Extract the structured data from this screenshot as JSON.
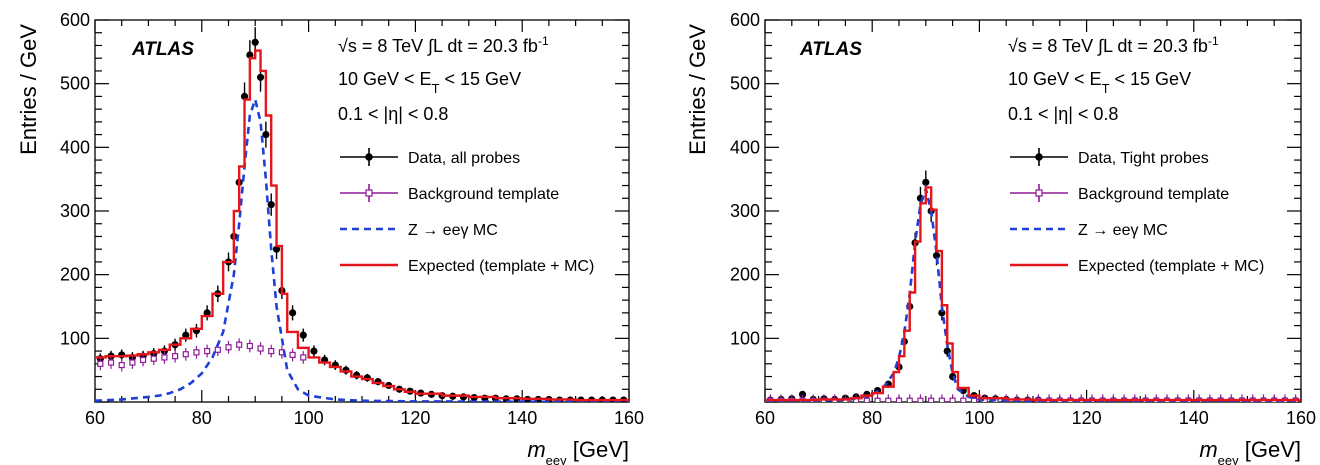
{
  "chart_data": [
    {
      "type": "line",
      "panel": "left",
      "experiment": "ATLAS",
      "info_lines": [
        "√s = 8 TeV  ∫L dt = 20.3 fb⁻¹",
        "10 GeV < E_T < 15 GeV",
        "0.1 < |η| < 0.8"
      ],
      "xlabel": "m_eeγ [GeV]",
      "ylabel": "Entries / GeV",
      "xlim": [
        60,
        160
      ],
      "ylim": [
        0,
        600
      ],
      "xticks": [
        60,
        80,
        100,
        120,
        140,
        160
      ],
      "yticks": [
        100,
        200,
        300,
        400,
        500,
        600
      ],
      "legend_position": "right",
      "series": [
        {
          "name": "Data, all probes",
          "kind": "points",
          "color": "#000000",
          "x": [
            61,
            63,
            65,
            67,
            69,
            71,
            73,
            75,
            77,
            79,
            81,
            83,
            85,
            86,
            87,
            88,
            89,
            90,
            91,
            92,
            93,
            94,
            95,
            97,
            99,
            101,
            103,
            105,
            107,
            109,
            111,
            113,
            115,
            117,
            119,
            121,
            123,
            125,
            127,
            129,
            131,
            133,
            135,
            137,
            139,
            141,
            143,
            145,
            147,
            149,
            151,
            153,
            155,
            157,
            159
          ],
          "y": [
            68,
            72,
            74,
            70,
            72,
            76,
            80,
            90,
            105,
            112,
            140,
            170,
            220,
            260,
            345,
            480,
            545,
            565,
            510,
            420,
            310,
            240,
            175,
            140,
            105,
            80,
            66,
            58,
            50,
            42,
            38,
            32,
            26,
            20,
            17,
            14,
            12,
            10,
            9,
            8,
            7,
            6,
            6,
            5,
            5,
            4,
            4,
            4,
            3,
            3,
            3,
            3,
            3,
            3,
            3
          ]
        },
        {
          "name": "Background template",
          "kind": "points-open",
          "color": "#8e1a9a",
          "x": [
            61,
            63,
            65,
            67,
            69,
            71,
            73,
            75,
            77,
            79,
            81,
            83,
            85,
            87,
            89,
            91,
            93,
            95,
            97,
            99
          ],
          "y": [
            60,
            62,
            58,
            62,
            66,
            68,
            70,
            72,
            75,
            78,
            80,
            82,
            86,
            90,
            88,
            84,
            80,
            78,
            74,
            70
          ]
        },
        {
          "name": "Z → eeγ MC",
          "kind": "dashed",
          "color": "#1f3fd6",
          "x": [
            60,
            65,
            70,
            72,
            74,
            76,
            78,
            80,
            82,
            84,
            86,
            87,
            88,
            89,
            90,
            91,
            92,
            93,
            94,
            96,
            98,
            100,
            105,
            110,
            120,
            160
          ],
          "y": [
            2,
            4,
            8,
            10,
            14,
            20,
            30,
            45,
            70,
            110,
            200,
            280,
            370,
            450,
            475,
            440,
            350,
            240,
            150,
            50,
            20,
            10,
            4,
            2,
            1,
            0
          ]
        },
        {
          "name": "Expected (template + MC)",
          "kind": "step",
          "color": "#e4161b",
          "x": [
            60,
            62,
            64,
            66,
            68,
            70,
            72,
            74,
            76,
            78,
            80,
            82,
            84,
            86,
            87,
            88,
            89,
            90,
            91,
            92,
            93,
            94,
            95,
            96,
            98,
            100,
            102,
            104,
            106,
            108,
            110,
            112,
            114,
            116,
            118,
            120,
            125,
            130,
            135,
            140,
            145,
            150,
            155,
            160
          ],
          "y": [
            70,
            72,
            72,
            73,
            75,
            78,
            82,
            90,
            100,
            115,
            135,
            170,
            220,
            300,
            370,
            475,
            540,
            552,
            520,
            450,
            340,
            245,
            170,
            110,
            85,
            70,
            62,
            55,
            48,
            40,
            36,
            30,
            25,
            20,
            16,
            13,
            10,
            8,
            6,
            5,
            4,
            3,
            3,
            3
          ]
        }
      ]
    },
    {
      "type": "line",
      "panel": "right",
      "experiment": "ATLAS",
      "info_lines": [
        "√s = 8 TeV  ∫L dt = 20.3 fb⁻¹",
        "10 GeV < E_T < 15 GeV",
        "0.1 < |η| < 0.8"
      ],
      "xlabel": "m_eeγ [GeV]",
      "ylabel": "Entries / GeV",
      "xlim": [
        60,
        160
      ],
      "ylim": [
        0,
        600
      ],
      "xticks": [
        60,
        80,
        100,
        120,
        140,
        160
      ],
      "yticks": [
        100,
        200,
        300,
        400,
        500,
        600
      ],
      "legend_position": "right",
      "series": [
        {
          "name": "Data, Tight probes",
          "kind": "points",
          "color": "#000000",
          "x": [
            61,
            63,
            65,
            67,
            69,
            71,
            73,
            75,
            77,
            79,
            81,
            83,
            85,
            86,
            87,
            88,
            89,
            90,
            91,
            92,
            93,
            94,
            95,
            97,
            99,
            101,
            103,
            105,
            107,
            109,
            111,
            113,
            115,
            117,
            119,
            121,
            123,
            125,
            127,
            129,
            131,
            133,
            135,
            137,
            139,
            141,
            143,
            145,
            147,
            149,
            151,
            153,
            155,
            157,
            159
          ],
          "y": [
            3,
            4,
            5,
            12,
            4,
            5,
            4,
            6,
            8,
            12,
            18,
            28,
            55,
            95,
            150,
            250,
            320,
            345,
            300,
            230,
            140,
            80,
            40,
            18,
            10,
            6,
            5,
            4,
            3,
            3,
            3,
            2,
            2,
            2,
            2,
            2,
            2,
            2,
            2,
            2,
            2,
            2,
            2,
            2,
            2,
            2,
            2,
            2,
            2,
            2,
            2,
            2,
            2,
            2,
            2
          ]
        },
        {
          "name": "Background template",
          "kind": "points-open",
          "color": "#8e1a9a",
          "x": [
            61,
            63,
            65,
            67,
            69,
            71,
            73,
            75,
            77,
            79,
            81,
            83,
            85,
            87,
            89,
            91,
            93,
            95,
            97,
            99,
            101,
            103,
            105,
            107,
            109,
            111,
            113,
            115,
            117,
            119,
            121,
            123,
            125,
            127,
            129,
            131,
            133,
            135,
            137,
            139,
            141,
            143,
            145,
            147,
            149,
            151,
            153,
            155,
            157,
            159
          ],
          "y": [
            2,
            2,
            2,
            2,
            2,
            2,
            2,
            2,
            2,
            2,
            2,
            2,
            2,
            2,
            2,
            2,
            2,
            2,
            2,
            2,
            2,
            2,
            2,
            2,
            2,
            2,
            2,
            2,
            2,
            2,
            2,
            2,
            2,
            2,
            2,
            2,
            2,
            2,
            2,
            2,
            2,
            2,
            2,
            2,
            2,
            2,
            2,
            2,
            2,
            2
          ]
        },
        {
          "name": "Z → eeγ MC",
          "kind": "dashed",
          "color": "#1f3fd6",
          "x": [
            60,
            70,
            76,
            78,
            80,
            82,
            84,
            85,
            86,
            87,
            88,
            89,
            90,
            91,
            92,
            93,
            94,
            95,
            96,
            98,
            100,
            105,
            110,
            160
          ],
          "y": [
            1,
            2,
            4,
            8,
            12,
            22,
            45,
            70,
            110,
            170,
            250,
            310,
            335,
            300,
            235,
            150,
            90,
            45,
            20,
            8,
            4,
            2,
            1,
            0
          ]
        },
        {
          "name": "Expected (template + MC)",
          "kind": "step",
          "color": "#e4161b",
          "x": [
            60,
            70,
            76,
            78,
            80,
            82,
            84,
            85,
            86,
            87,
            88,
            89,
            90,
            91,
            92,
            93,
            94,
            95,
            96,
            98,
            100,
            105,
            110,
            160
          ],
          "y": [
            3,
            4,
            6,
            10,
            14,
            24,
            47,
            72,
            112,
            172,
            252,
            312,
            337,
            302,
            237,
            152,
            92,
            47,
            22,
            10,
            6,
            4,
            3,
            2
          ]
        }
      ]
    }
  ]
}
